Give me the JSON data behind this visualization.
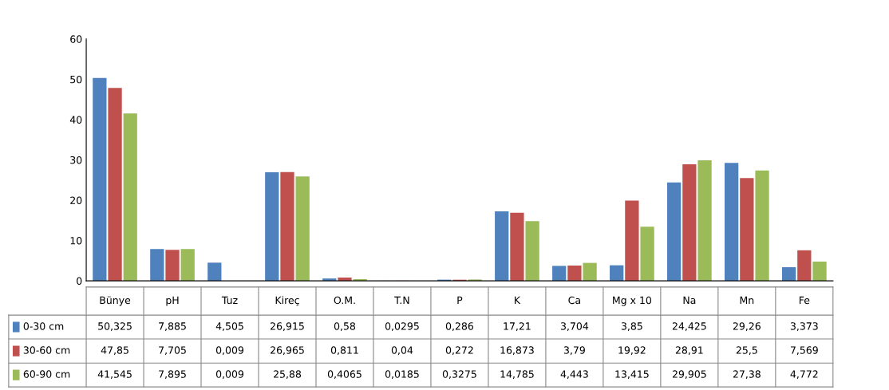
{
  "chart_data": {
    "type": "bar",
    "categories": [
      "Bünye",
      "pH",
      "Tuz",
      "Kireç",
      "O.M.",
      "T.N",
      "P",
      "K",
      "Ca",
      "Mg x 10",
      "Na",
      "Mn",
      "Fe"
    ],
    "ylim": [
      0,
      60
    ],
    "yticks": [
      0,
      10,
      20,
      30,
      40,
      50,
      60
    ],
    "grid": false,
    "legend": "bottom",
    "data_labels": true,
    "series": [
      {
        "name": "0-30 cm",
        "color": "#4f81bd",
        "values": [
          50.325,
          7.885,
          4.505,
          26.915,
          0.58,
          0.0295,
          0.286,
          17.21,
          3.704,
          3.85,
          24.425,
          29.26,
          3.373
        ],
        "value_labels": [
          "50,325",
          "7,885",
          "4,505",
          "26,915",
          "0,58",
          "0,0295",
          "0,286",
          "17,21",
          "3,704",
          "3,85",
          "24,425",
          "29,26",
          "3,373"
        ]
      },
      {
        "name": "30-60 cm",
        "color": "#c0504d",
        "values": [
          47.85,
          7.705,
          0.009,
          26.965,
          0.811,
          0.04,
          0.272,
          16.873,
          3.79,
          19.92,
          28.91,
          25.5,
          7.569
        ],
        "value_labels": [
          "47,85",
          "7,705",
          "0,009",
          "26,965",
          "0,811",
          "0,04",
          "0,272",
          "16,873",
          "3,79",
          "19,92",
          "28,91",
          "25,5",
          "7,569"
        ]
      },
      {
        "name": "60-90 cm",
        "color": "#9bbb59",
        "values": [
          41.545,
          7.895,
          0.009,
          25.88,
          0.4065,
          0.0185,
          0.3275,
          14.785,
          4.443,
          13.415,
          29.905,
          27.38,
          4.772
        ],
        "value_labels": [
          "41,545",
          "7,895",
          "0,009",
          "25,88",
          "0,4065",
          "0,0185",
          "0,3275",
          "14,785",
          "4,443",
          "13,415",
          "29,905",
          "27,38",
          "4,772"
        ]
      }
    ]
  }
}
